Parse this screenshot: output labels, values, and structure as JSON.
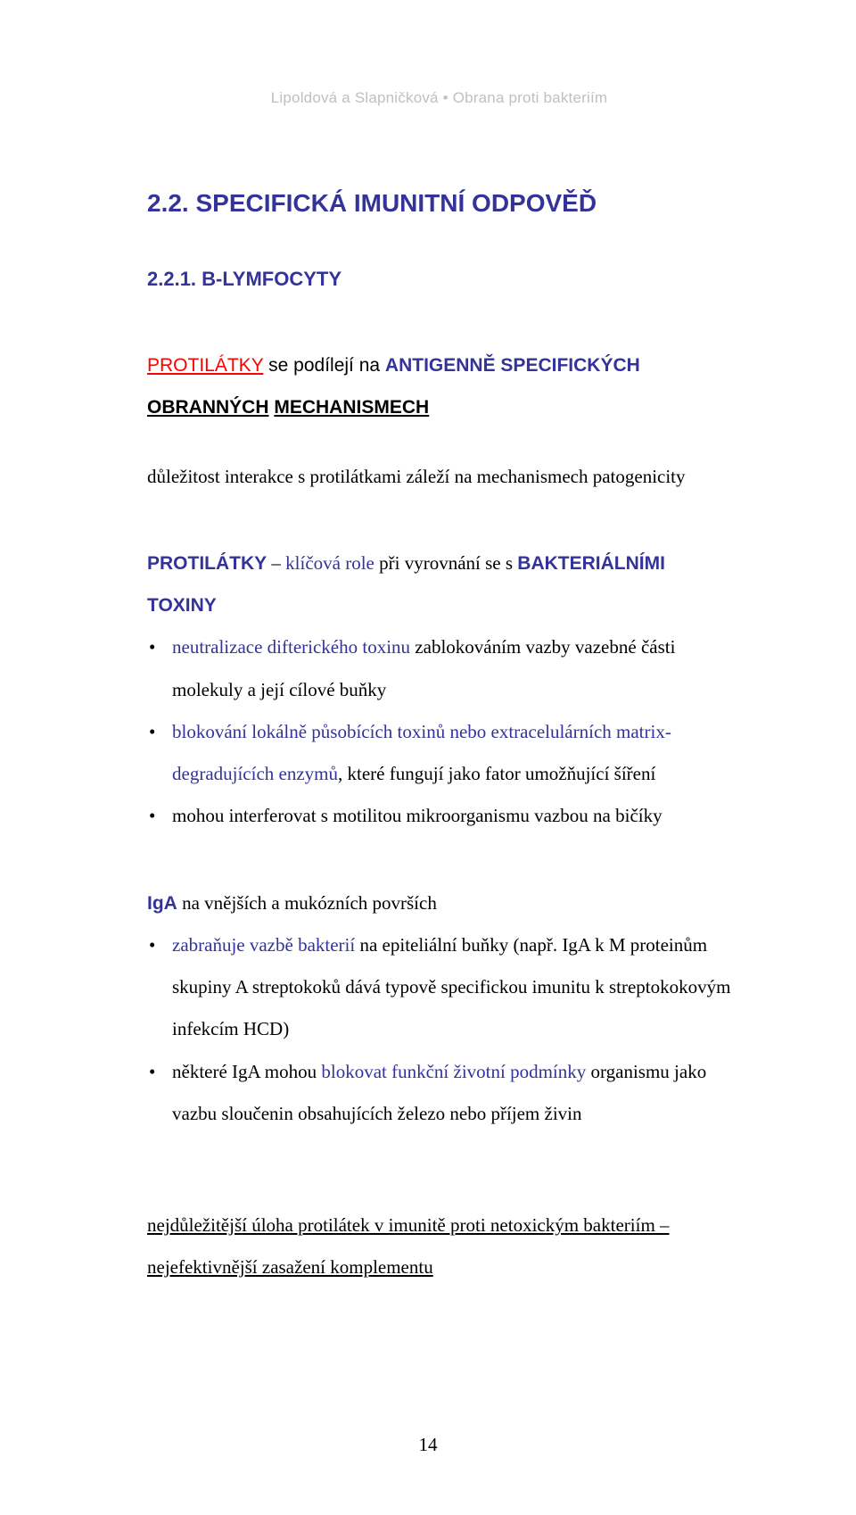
{
  "header": {
    "running": "Lipoldová a Slapničková • Obrana proti bakteriím"
  },
  "headings": {
    "main": "2.2. SPECIFICKÁ IMUNITNÍ ODPOVĚĎ",
    "sub": "2.2.1. B-LYMFOCYTY"
  },
  "intro": {
    "part1": "PROTILÁTKY",
    "part2": " se podílejí na ",
    "part3": "ANTIGENNĚ SPECIFICKÝCH",
    "part4": " ",
    "part5": "OBRANNÝCH",
    "part6": " ",
    "part7": "MECHANISMECH"
  },
  "section1": {
    "lead": "důležitost interakce s protilátkami záleží na mechanismech patogenicity"
  },
  "section2": {
    "lead_a": "PROTILÁTKY",
    "lead_b": " – ",
    "lead_c": "klíčová role",
    "lead_d": " při vyrovnání se s ",
    "lead_e": "BAKTERIÁLNÍMI TOXINY",
    "bullets": [
      {
        "pre": "neutralizace difterického toxinu",
        "post": " zablokováním vazby vazebné části molekuly a její cílové buňky"
      },
      {
        "pre": "blokování lokálně působících toxinů nebo extracelulárních matrix-degradujících enzymů",
        "post": ", které fungují jako fator umožňující šíření"
      },
      {
        "pre": "",
        "plain": "mohou interferovat s motilitou mikroorganismu vazbou na bičíky",
        "post": ""
      }
    ]
  },
  "section3": {
    "lead_a": "IgA",
    "lead_b": " na vnějších a mukózních površích",
    "bullets": [
      {
        "pre": "zabraňuje vazbě bakterií",
        "post": " na epiteliální buňky (např. IgA k M proteinům skupiny A streptokoků dává typově specifickou imunitu k streptokokovým infekcím HCD)"
      },
      {
        "plain_a": "některé IgA mohou ",
        "pre": "blokovat funkční životní podmínky",
        "plain_b": " organismu jako vazbu sloučenin obsahujících železo nebo příjem živin"
      }
    ]
  },
  "footer_line": "nejdůležitější úloha protilátek v imunitě proti netoxickým bakteriím – nejefektivnější zasažení komplementu",
  "page_number": "14"
}
